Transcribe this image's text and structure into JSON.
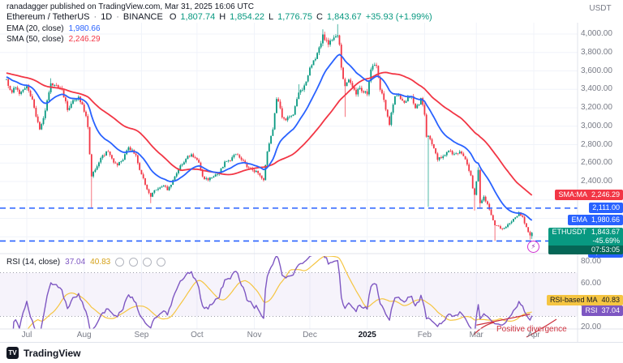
{
  "attribution": "ranadagger published on TradingView.com, Mar 31, 2025 16:06 UTC",
  "symbol": {
    "title": "Ethereum / TetherUS",
    "separator": "·",
    "interval": "1D",
    "exchange": "BINANCE",
    "o_label": "O",
    "o": "1,807.74",
    "h_label": "H",
    "h": "1,854.22",
    "l_label": "L",
    "l": "1,776.75",
    "c_label": "C",
    "c": "1,843.67",
    "change": "+35.93 (+1.99%)"
  },
  "indicators": {
    "ema": {
      "label": "EMA (20, close)",
      "value": "1,980.66"
    },
    "sma": {
      "label": "SMA (50, close)",
      "value": "2,246.29"
    }
  },
  "rsi_pane": {
    "legend": "RSI (14, close)",
    "value": "37.04",
    "ma_value": "40.83",
    "ma_badge_label": "RSI-based MA",
    "ma_badge_value": "40.83",
    "rsi_badge_label": "RSI",
    "rsi_badge_value": "37.04"
  },
  "price_scale": {
    "currency": "USDT",
    "sma_badge_label": "SMA:MA",
    "sma_badge_value": "2,246.29",
    "ema_badge_label": "EMA",
    "ema_badge_value": "1,980.66",
    "symbol_badge_label": "ETHUSDT",
    "symbol_badge_value": "1,843.67",
    "symbol_badge_change": "-45.69%",
    "symbol_badge_countdown": "07:53:05",
    "level_upper_label": "2,111.00",
    "level_lower_label": "1,754.28"
  },
  "annotation": {
    "text": "Positive divergence"
  },
  "footer": {
    "brand": "TradingView"
  },
  "icons": {
    "lightning": "⚡",
    "logo": "TV"
  },
  "colors": {
    "up": "#089981",
    "down": "#f23645",
    "ema": "#2962ff",
    "sma_line": "#f23645",
    "level": "#2962ff",
    "rsi": "#7e57c2",
    "rsi_ma": "#f5c542",
    "annotation": "#cc2f3c",
    "grid": "#f0f3fa",
    "axis_border": "#e0e3eb",
    "axis_text": "#787b86"
  },
  "chart_data": {
    "type": "candlestick",
    "title": "Ethereum / TetherUS · 1D · BINANCE",
    "x_axis": {
      "ticks": [
        {
          "label": "Jul",
          "day": 0
        },
        {
          "label": "Aug",
          "day": 31
        },
        {
          "label": "Sep",
          "day": 62
        },
        {
          "label": "Oct",
          "day": 92
        },
        {
          "label": "Nov",
          "day": 123
        },
        {
          "label": "Dec",
          "day": 153
        },
        {
          "label": "2025",
          "day": 184,
          "year": true
        },
        {
          "label": "Feb",
          "day": 215
        },
        {
          "label": "Mar",
          "day": 243
        },
        {
          "label": "Apr",
          "day": 274
        }
      ]
    },
    "y_axis": {
      "ticks": [
        4000,
        3800,
        3600,
        3400,
        3200,
        3000,
        2800,
        2600,
        2400
      ],
      "grid_extra": [
        2200,
        2000,
        1800
      ],
      "range_top": 4123,
      "range_bottom": 1720
    },
    "price_anchors": [
      [
        -11,
        3510
      ],
      [
        -8,
        3365
      ],
      [
        -6,
        3420
      ],
      [
        -4,
        3350
      ],
      [
        -2,
        3395
      ],
      [
        0,
        3435
      ],
      [
        3,
        3290
      ],
      [
        5,
        3105
      ],
      [
        7,
        2965
      ],
      [
        10,
        3170
      ],
      [
        13,
        3465
      ],
      [
        16,
        3445
      ],
      [
        19,
        3395
      ],
      [
        22,
        3175
      ],
      [
        24,
        3245
      ],
      [
        26,
        3285
      ],
      [
        28,
        3320
      ],
      [
        30,
        3235
      ],
      [
        32,
        3110
      ],
      [
        33,
        2990
      ],
      [
        34,
        2695
      ],
      [
        35,
        2455
      ],
      [
        36,
        2505
      ],
      [
        38,
        2565
      ],
      [
        41,
        2685
      ],
      [
        44,
        2725
      ],
      [
        47,
        2605
      ],
      [
        49,
        2575
      ],
      [
        52,
        2635
      ],
      [
        55,
        2770
      ],
      [
        57,
        2745
      ],
      [
        59,
        2685
      ],
      [
        61,
        2525
      ],
      [
        63,
        2435
      ],
      [
        66,
        2275
      ],
      [
        67,
        2235
      ],
      [
        69,
        2305
      ],
      [
        72,
        2335
      ],
      [
        74,
        2355
      ],
      [
        76,
        2305
      ],
      [
        78,
        2365
      ],
      [
        80,
        2455
      ],
      [
        83,
        2575
      ],
      [
        86,
        2645
      ],
      [
        89,
        2695
      ],
      [
        91,
        2655
      ],
      [
        93,
        2605
      ],
      [
        95,
        2455
      ],
      [
        98,
        2415
      ],
      [
        101,
        2455
      ],
      [
        104,
        2485
      ],
      [
        107,
        2615
      ],
      [
        110,
        2625
      ],
      [
        113,
        2695
      ],
      [
        116,
        2635
      ],
      [
        119,
        2555
      ],
      [
        122,
        2525
      ],
      [
        124,
        2515
      ],
      [
        126,
        2465
      ],
      [
        128,
        2415
      ],
      [
        130,
        2725
      ],
      [
        132,
        2895
      ],
      [
        133,
        2965
      ],
      [
        135,
        3295
      ],
      [
        137,
        3195
      ],
      [
        138,
        3095
      ],
      [
        140,
        3065
      ],
      [
        142,
        3105
      ],
      [
        144,
        3125
      ],
      [
        146,
        3295
      ],
      [
        147,
        3365
      ],
      [
        149,
        3395
      ],
      [
        151,
        3485
      ],
      [
        153,
        3635
      ],
      [
        155,
        3715
      ],
      [
        157,
        3795
      ],
      [
        158,
        3855
      ],
      [
        160,
        3995
      ],
      [
        161,
        3935
      ],
      [
        163,
        3885
      ],
      [
        165,
        3935
      ],
      [
        167,
        3975
      ],
      [
        168,
        3985
      ],
      [
        169,
        3885
      ],
      [
        170,
        3635
      ],
      [
        172,
        3435
      ],
      [
        174,
        3505
      ],
      [
        176,
        3425
      ],
      [
        178,
        3345
      ],
      [
        180,
        3415
      ],
      [
        182,
        3365
      ],
      [
        184,
        3345
      ],
      [
        186,
        3615
      ],
      [
        188,
        3665
      ],
      [
        189,
        3655
      ],
      [
        191,
        3395
      ],
      [
        193,
        3285
      ],
      [
        195,
        3105
      ],
      [
        196,
        3015
      ],
      [
        198,
        3235
      ],
      [
        199,
        3325
      ],
      [
        201,
        3335
      ],
      [
        202,
        3295
      ],
      [
        204,
        3255
      ],
      [
        206,
        3315
      ],
      [
        208,
        3325
      ],
      [
        210,
        3195
      ],
      [
        212,
        3235
      ],
      [
        213,
        3305
      ],
      [
        215,
        3125
      ],
      [
        216,
        2885
      ],
      [
        217,
        2895
      ],
      [
        219,
        2805
      ],
      [
        221,
        2705
      ],
      [
        222,
        2635
      ],
      [
        224,
        2655
      ],
      [
        226,
        2685
      ],
      [
        228,
        2735
      ],
      [
        230,
        2695
      ],
      [
        232,
        2705
      ],
      [
        234,
        2725
      ],
      [
        236,
        2675
      ],
      [
        238,
        2585
      ],
      [
        239,
        2515
      ],
      [
        240,
        2465
      ],
      [
        241,
        2325
      ],
      [
        242,
        2255
      ],
      [
        244,
        2525
      ],
      [
        245,
        2165
      ],
      [
        246,
        2195
      ],
      [
        247,
        2235
      ],
      [
        249,
        2155
      ],
      [
        251,
        2035
      ],
      [
        253,
        1925
      ],
      [
        255,
        1915
      ],
      [
        257,
        1885
      ],
      [
        258,
        1895
      ],
      [
        260,
        1935
      ],
      [
        262,
        1965
      ],
      [
        263,
        1995
      ],
      [
        265,
        2025
      ],
      [
        266,
        2065
      ],
      [
        268,
        2015
      ],
      [
        270,
        1905
      ],
      [
        272,
        1815
      ],
      [
        273,
        1843.67
      ]
    ],
    "wick_lows": [
      [
        35,
        2115
      ],
      [
        67,
        2165
      ],
      [
        172,
        3101
      ],
      [
        217,
        2125
      ],
      [
        242,
        2085
      ],
      [
        245,
        2105
      ],
      [
        253,
        1755
      ],
      [
        272,
        1770
      ]
    ],
    "wick_highs": [
      [
        13,
        3520
      ],
      [
        147,
        3455
      ],
      [
        160,
        4052
      ],
      [
        168,
        4107
      ],
      [
        186,
        3630
      ],
      [
        244,
        2555
      ]
    ],
    "last_bar": {
      "open": 1807.74,
      "high": 1854.22,
      "low": 1776.75,
      "close": 1843.67
    },
    "levels": [
      2111.0,
      1754.28
    ],
    "overlays": [
      {
        "name": "EMA",
        "period": 20
      },
      {
        "name": "SMA",
        "period": 50
      }
    ],
    "overlay_last": {
      "ema": 1980.66,
      "sma": 2246.29
    },
    "rsi": {
      "period": 14,
      "ma_period": 14,
      "band": [
        30,
        70
      ],
      "ticks": [
        80,
        60,
        40,
        20
      ],
      "last": 37.04,
      "ma_last": 40.83
    }
  }
}
